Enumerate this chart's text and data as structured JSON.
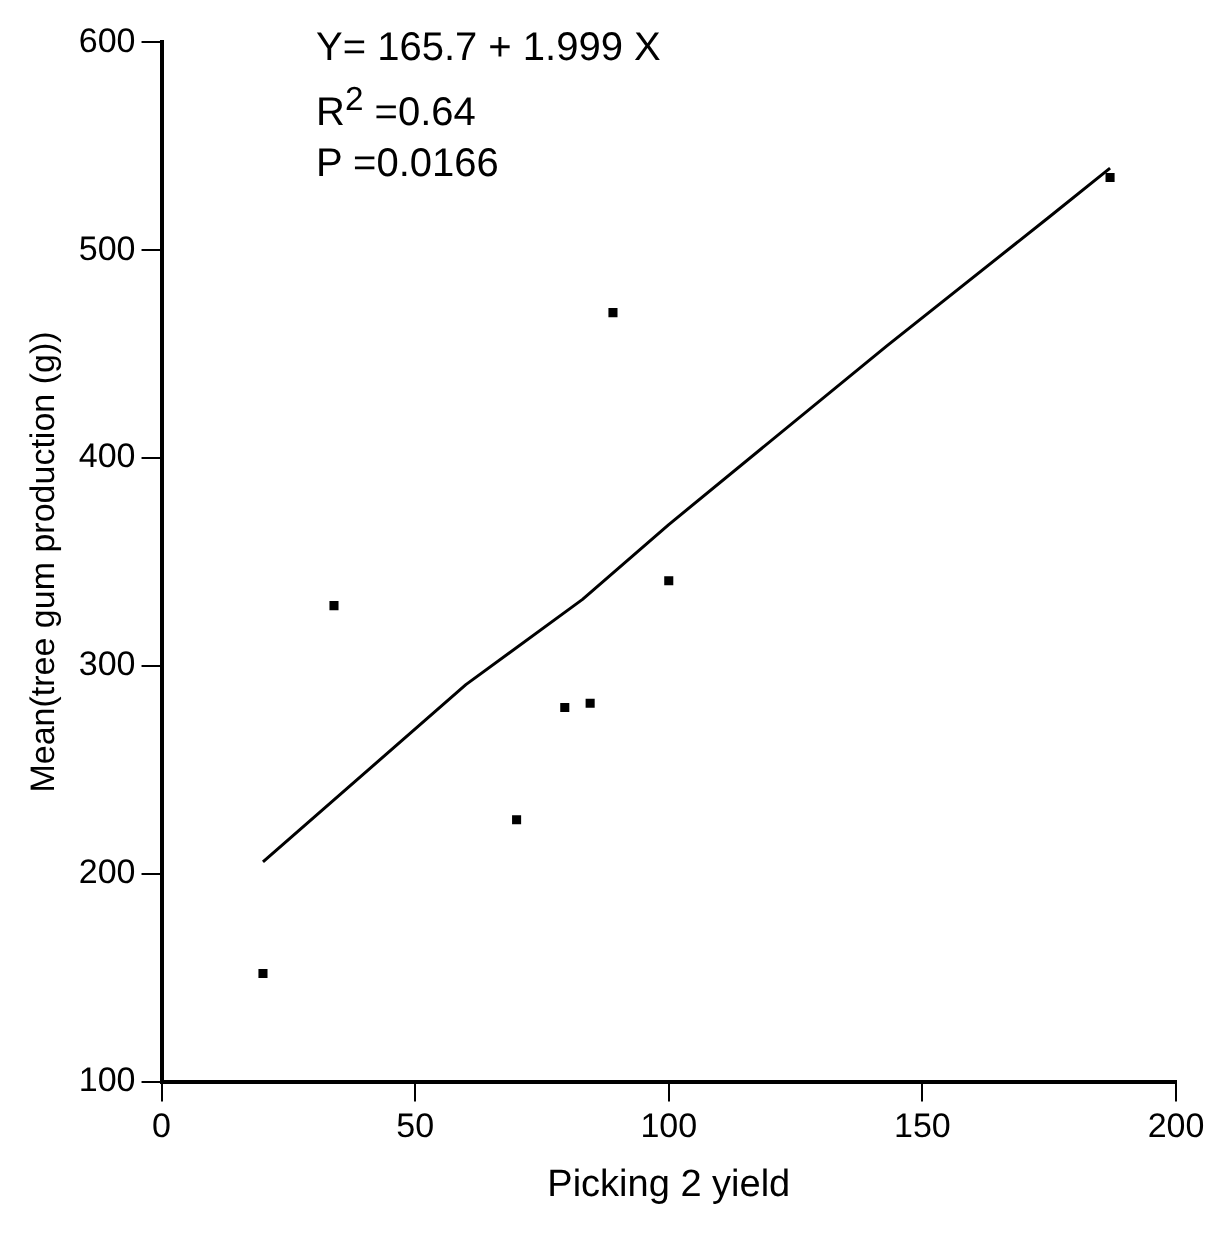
{
  "chart_data": {
    "type": "scatter",
    "xlabel": "Picking 2 yield",
    "ylabel": "Mean(tree gum production (g))",
    "xlim": [
      0,
      200
    ],
    "xticks": [
      0,
      50,
      100,
      150,
      200
    ],
    "ylim": [
      100,
      600
    ],
    "yticks": [
      100,
      200,
      300,
      400,
      500,
      600
    ],
    "grid": false,
    "legend": false,
    "marker": "square",
    "annotations": [
      "Y= 165.7 + 1.999 X",
      "R$^{2}$ =0.64",
      "P =0.0166"
    ],
    "series": [
      {
        "color": "#000000",
        "x": [
          20,
          34,
          70,
          79.5,
          84.5,
          89,
          100,
          187
        ],
        "values": [
          152,
          329,
          226,
          280,
          282,
          470,
          341,
          535
        ]
      },
      {
        "type": "line",
        "color": "#000000",
        "marker": "none",
        "x": [
          20,
          60,
          83,
          100,
          143,
          175,
          187
        ],
        "values": [
          205.7,
          291,
          332,
          368,
          454,
          516,
          539.5
        ]
      }
    ]
  }
}
